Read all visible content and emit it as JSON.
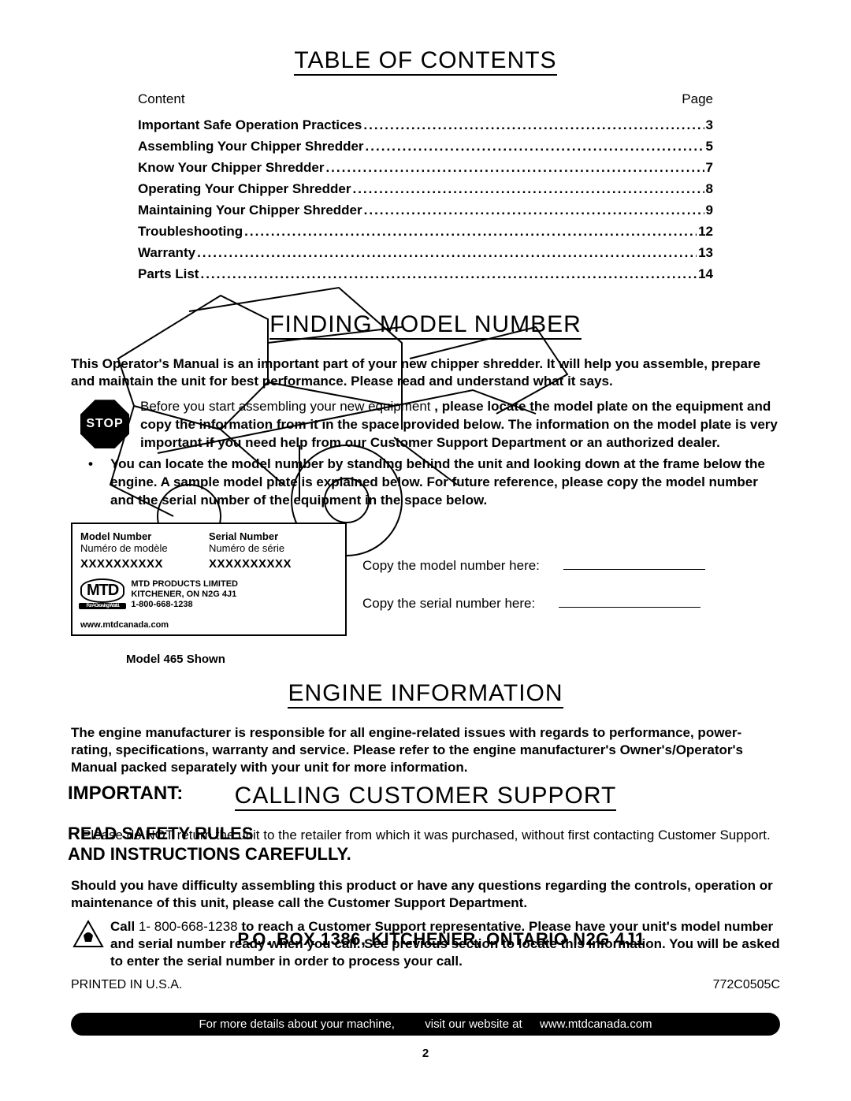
{
  "headings": {
    "toc": "TABLE OF CONTENTS",
    "finding": "FINDING MODEL NUMBER",
    "engine": "ENGINE INFORMATION",
    "calling": "CALLING CUSTOMER SUPPORT"
  },
  "toc_header": {
    "left": "Content",
    "right": "Page"
  },
  "toc": [
    {
      "label": "Important Safe Operation Practices",
      "page": "3"
    },
    {
      "label": "Assembling Your Chipper Shredder",
      "page": "5"
    },
    {
      "label": "Know Your Chipper Shredder",
      "page": "7"
    },
    {
      "label": "Operating Your Chipper Shredder",
      "page": "8"
    },
    {
      "label": "Maintaining Your Chipper Shredder",
      "page": "9"
    },
    {
      "label": "Troubleshooting",
      "page": "12"
    },
    {
      "label": "Warranty",
      "page": "13"
    },
    {
      "label": "Parts List",
      "page": "14"
    }
  ],
  "finding_intro": "This Operator's Manual is an important part of your new chipper shredder. It will help you assemble, prepare and maintain the unit for best performance. Please read and understand what it says.",
  "stop_label": "STOP",
  "stop_para_plain": "Before you start assembling your new equipment",
  "stop_para_bold": ", please locate the model plate on the equipment and copy the information from it in the space provided below. The information on the model plate is very important if you need help from our Customer Support Department or an authorized dealer.",
  "bullet_text": "You can locate the model number by standing behind the unit and looking down at the frame below the engine. A sample model plate is explained below. For future reference, please copy the model number and the serial number of the equipment in the space below.",
  "plate": {
    "model_label_en": "Model Number",
    "model_label_fr": "Numéro de modèle",
    "serial_label_en": "Serial Number",
    "serial_label_fr": "Numéro de série",
    "x_value": "XXXXXXXXXX",
    "logo_text": "MTD",
    "logo_tag": "For A Growing World.",
    "addr1": "MTD PRODUCTS LIMITED",
    "addr2": "KITCHENER, ON N2G 4J1",
    "phone": "1-800-668-1238",
    "site": "www.mtdcanada.com"
  },
  "model_shown": "Model 465 Shown",
  "copy_model": "Copy the model number here:",
  "copy_serial": "Copy the serial number here:",
  "engine_para": "The engine manufacturer is responsible for all engine-related issues with regards to performance, power-rating, specifications, warranty and service. Please refer to the engine manufacturer's Owner's/Operator's Manual packed separately with your unit for more information.",
  "important_label": "IMPORTANT:",
  "read_rules_1": "READ SAFETY RULES",
  "read_rules_2": "AND INSTRUCTIONS CAREFULLY.",
  "calling_p1": "Please do NOT return the unit to the retailer from which it was purchased, without first contacting Customer Support.",
  "calling_p2": "Should you have difficulty assembling this product or have any questions regarding the controls, operation or maintenance of this unit, please call the Customer Support Department.",
  "call_prefix": "Call ",
  "call_number": "1- 800-668-1238",
  "call_suffix": " to reach a Customer Support representative. Please have your unit's model number and serial number ready when you call. See previous section to locate this information. You will be asked to enter the serial number in order to process your call.",
  "po_box": "P.O. BOX 1386, KITCHENER, ONTARIO N2G 4J1",
  "printed": "PRINTED IN U.S.A.",
  "doc_num": "772C0505C",
  "footer_pre": "For more details about your machine,",
  "footer_mid": "visit our website at",
  "footer_url": "www.mtdcanada.com",
  "page_number": "2"
}
